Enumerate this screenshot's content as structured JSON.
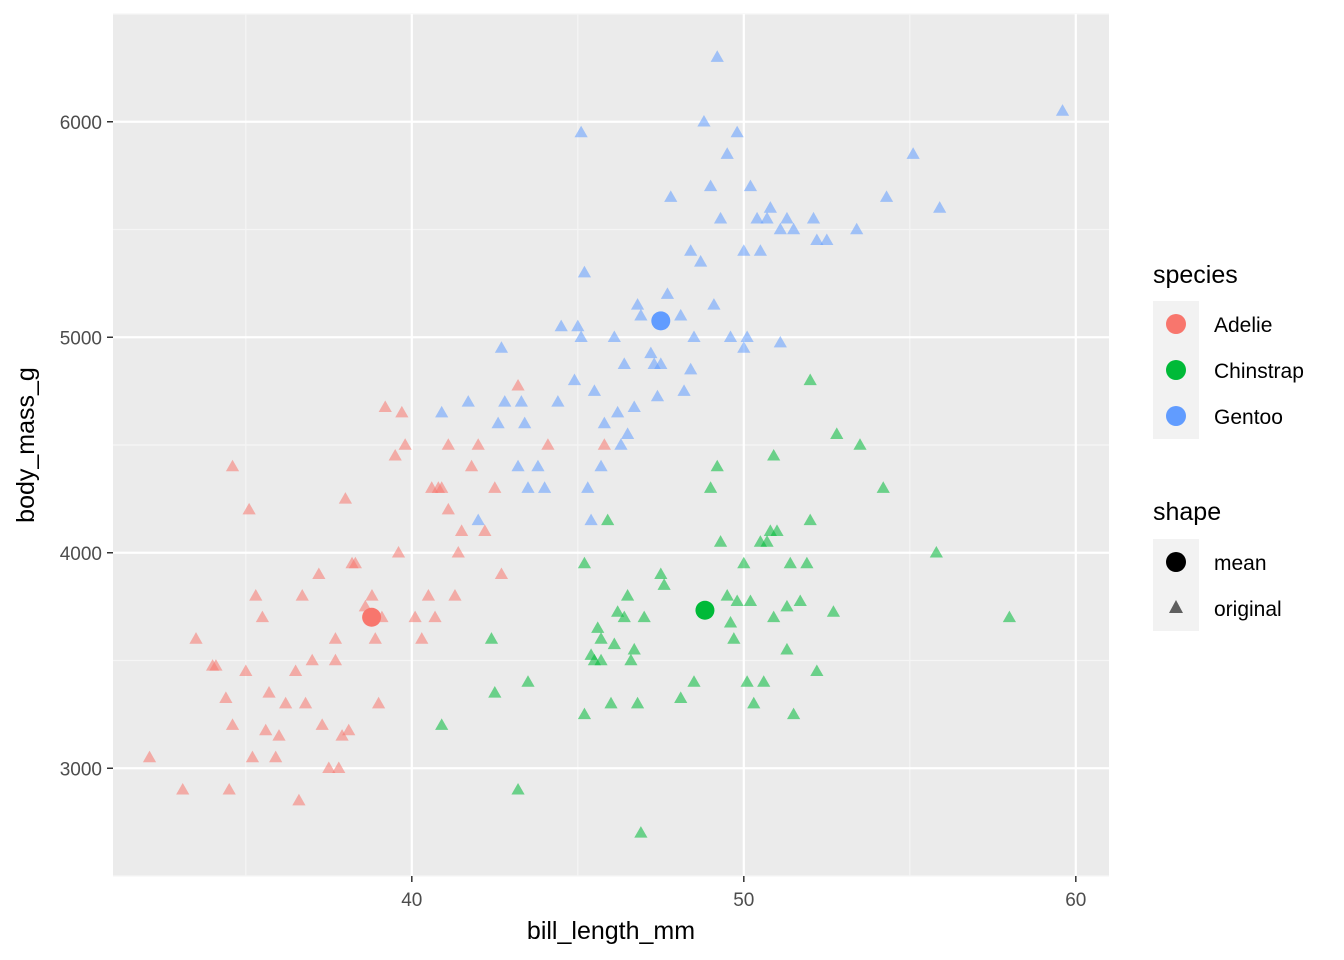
{
  "chart_data": {
    "type": "scatter",
    "title": "",
    "xlabel": "bill_length_mm",
    "ylabel": "body_mass_g",
    "xlim": [
      31,
      61
    ],
    "ylim": [
      2500,
      6500
    ],
    "x_ticks": [
      40,
      50,
      60
    ],
    "y_ticks": [
      3000,
      4000,
      5000,
      6000
    ],
    "grid": true,
    "legend_position": "right",
    "legends": [
      {
        "title": "species",
        "entries": [
          {
            "label": "Adelie",
            "color": "#F8766D"
          },
          {
            "label": "Chinstrap",
            "color": "#00BA38"
          },
          {
            "label": "Gentoo",
            "color": "#619CFF"
          }
        ]
      },
      {
        "title": "shape",
        "entries": [
          {
            "label": "mean",
            "shape": "circle"
          },
          {
            "label": "original",
            "shape": "triangle"
          }
        ]
      }
    ],
    "series": [
      {
        "name": "Adelie",
        "color": "#F8766D",
        "shape": "original",
        "points": [
          [
            32.1,
            3050
          ],
          [
            33.1,
            2900
          ],
          [
            33.5,
            3600
          ],
          [
            34.0,
            3475
          ],
          [
            34.1,
            3475
          ],
          [
            34.4,
            3325
          ],
          [
            34.5,
            2900
          ],
          [
            34.6,
            4400
          ],
          [
            34.6,
            3200
          ],
          [
            35.0,
            3450
          ],
          [
            35.1,
            4200
          ],
          [
            35.2,
            3050
          ],
          [
            35.3,
            3800
          ],
          [
            35.5,
            3700
          ],
          [
            35.6,
            3175
          ],
          [
            35.7,
            3350
          ],
          [
            35.9,
            3050
          ],
          [
            36.0,
            3150
          ],
          [
            36.2,
            3300
          ],
          [
            36.5,
            3450
          ],
          [
            36.6,
            2850
          ],
          [
            36.7,
            3800
          ],
          [
            37.0,
            3500
          ],
          [
            37.2,
            3900
          ],
          [
            37.3,
            3200
          ],
          [
            37.5,
            3000
          ],
          [
            37.7,
            3600
          ],
          [
            37.8,
            3000
          ],
          [
            37.9,
            3150
          ],
          [
            38.0,
            4250
          ],
          [
            38.1,
            3175
          ],
          [
            38.2,
            3950
          ],
          [
            38.6,
            3750
          ],
          [
            38.8,
            3800
          ],
          [
            38.9,
            3600
          ],
          [
            39.0,
            3300
          ],
          [
            39.1,
            3700
          ],
          [
            39.2,
            4675
          ],
          [
            39.5,
            4450
          ],
          [
            39.6,
            4000
          ],
          [
            39.7,
            4650
          ],
          [
            40.1,
            3700
          ],
          [
            40.3,
            3600
          ],
          [
            40.5,
            3800
          ],
          [
            40.6,
            4300
          ],
          [
            40.8,
            4300
          ],
          [
            40.9,
            4300
          ],
          [
            41.1,
            4500
          ],
          [
            41.3,
            3800
          ],
          [
            41.4,
            4000
          ],
          [
            41.5,
            4100
          ],
          [
            41.8,
            4400
          ],
          [
            42.0,
            4500
          ],
          [
            42.2,
            4100
          ],
          [
            42.5,
            4300
          ],
          [
            42.7,
            3900
          ],
          [
            43.2,
            4775
          ],
          [
            44.1,
            4500
          ],
          [
            45.8,
            4500
          ],
          [
            37.7,
            3500
          ],
          [
            36.8,
            3300
          ],
          [
            38.3,
            3950
          ],
          [
            39.8,
            4500
          ],
          [
            40.7,
            3700
          ],
          [
            41.1,
            4200
          ]
        ]
      },
      {
        "name": "Chinstrap",
        "color": "#00BA38",
        "shape": "original",
        "points": [
          [
            40.9,
            3200
          ],
          [
            42.4,
            3600
          ],
          [
            42.5,
            3350
          ],
          [
            43.2,
            2900
          ],
          [
            43.5,
            3400
          ],
          [
            45.2,
            3950
          ],
          [
            45.2,
            3250
          ],
          [
            45.4,
            3525
          ],
          [
            45.5,
            3500
          ],
          [
            45.6,
            3650
          ],
          [
            45.7,
            3600
          ],
          [
            45.9,
            4150
          ],
          [
            46.0,
            3300
          ],
          [
            46.1,
            3575
          ],
          [
            46.2,
            3725
          ],
          [
            46.4,
            3700
          ],
          [
            46.5,
            3800
          ],
          [
            46.6,
            3500
          ],
          [
            46.8,
            3300
          ],
          [
            46.9,
            2700
          ],
          [
            47.0,
            3700
          ],
          [
            47.5,
            3900
          ],
          [
            47.6,
            3850
          ],
          [
            48.1,
            3325
          ],
          [
            48.5,
            3400
          ],
          [
            49.0,
            4300
          ],
          [
            49.2,
            4400
          ],
          [
            49.5,
            3800
          ],
          [
            49.6,
            3675
          ],
          [
            49.7,
            3600
          ],
          [
            49.8,
            3775
          ],
          [
            50.0,
            3950
          ],
          [
            50.1,
            3400
          ],
          [
            50.2,
            3775
          ],
          [
            50.3,
            3300
          ],
          [
            50.5,
            4050
          ],
          [
            50.6,
            3400
          ],
          [
            50.7,
            4050
          ],
          [
            50.8,
            4100
          ],
          [
            50.9,
            3700
          ],
          [
            51.0,
            4100
          ],
          [
            51.3,
            3750
          ],
          [
            51.4,
            3950
          ],
          [
            51.5,
            3250
          ],
          [
            51.7,
            3775
          ],
          [
            52.0,
            4800
          ],
          [
            52.2,
            3450
          ],
          [
            52.7,
            3725
          ],
          [
            52.8,
            4550
          ],
          [
            53.5,
            4500
          ],
          [
            54.2,
            4300
          ],
          [
            55.8,
            4000
          ],
          [
            58.0,
            3700
          ],
          [
            45.7,
            3500
          ],
          [
            46.7,
            3550
          ],
          [
            49.3,
            4050
          ],
          [
            50.9,
            4450
          ],
          [
            51.3,
            3550
          ],
          [
            52.0,
            4150
          ],
          [
            51.9,
            3950
          ]
        ]
      },
      {
        "name": "Gentoo",
        "color": "#619CFF",
        "shape": "original",
        "points": [
          [
            40.9,
            4650
          ],
          [
            41.7,
            4700
          ],
          [
            42.0,
            4150
          ],
          [
            42.6,
            4600
          ],
          [
            42.7,
            4950
          ],
          [
            42.8,
            4700
          ],
          [
            43.2,
            4400
          ],
          [
            43.3,
            4700
          ],
          [
            43.4,
            4600
          ],
          [
            43.5,
            4300
          ],
          [
            43.8,
            4400
          ],
          [
            44.0,
            4300
          ],
          [
            44.4,
            4700
          ],
          [
            44.5,
            5050
          ],
          [
            45.0,
            5050
          ],
          [
            45.1,
            5000
          ],
          [
            45.2,
            5300
          ],
          [
            45.3,
            4300
          ],
          [
            45.4,
            4150
          ],
          [
            45.5,
            4750
          ],
          [
            45.7,
            4400
          ],
          [
            45.8,
            4600
          ],
          [
            46.1,
            5000
          ],
          [
            46.2,
            4650
          ],
          [
            46.4,
            4875
          ],
          [
            46.5,
            4550
          ],
          [
            46.8,
            5150
          ],
          [
            47.2,
            4925
          ],
          [
            47.3,
            4875
          ],
          [
            47.5,
            4875
          ],
          [
            47.7,
            5200
          ],
          [
            48.1,
            5100
          ],
          [
            48.2,
            4750
          ],
          [
            48.4,
            5400
          ],
          [
            48.5,
            5000
          ],
          [
            48.7,
            5350
          ],
          [
            49.0,
            5700
          ],
          [
            49.1,
            5150
          ],
          [
            49.2,
            6300
          ],
          [
            49.5,
            5850
          ],
          [
            49.8,
            5950
          ],
          [
            50.0,
            5400
          ],
          [
            50.1,
            5000
          ],
          [
            50.2,
            5700
          ],
          [
            50.4,
            5550
          ],
          [
            50.5,
            5400
          ],
          [
            50.7,
            5550
          ],
          [
            50.8,
            5600
          ],
          [
            51.1,
            5500
          ],
          [
            51.3,
            5550
          ],
          [
            51.5,
            5500
          ],
          [
            52.1,
            5550
          ],
          [
            52.2,
            5450
          ],
          [
            52.5,
            5450
          ],
          [
            53.4,
            5500
          ],
          [
            54.3,
            5650
          ],
          [
            55.1,
            5850
          ],
          [
            55.9,
            5600
          ],
          [
            59.6,
            6050
          ],
          [
            46.9,
            5100
          ],
          [
            45.1,
            5950
          ],
          [
            48.8,
            6000
          ],
          [
            49.3,
            5550
          ],
          [
            47.8,
            5650
          ],
          [
            46.3,
            4500
          ],
          [
            48.4,
            4850
          ],
          [
            44.9,
            4800
          ],
          [
            50.0,
            4950
          ],
          [
            51.1,
            4975
          ],
          [
            47.4,
            4725
          ],
          [
            49.6,
            5000
          ],
          [
            46.7,
            4675
          ]
        ]
      },
      {
        "name": "Adelie",
        "color": "#F8766D",
        "shape": "mean",
        "points": [
          [
            38.79,
            3700.66
          ]
        ]
      },
      {
        "name": "Chinstrap",
        "color": "#00BA38",
        "shape": "mean",
        "points": [
          [
            48.83,
            3733.09
          ]
        ]
      },
      {
        "name": "Gentoo",
        "color": "#619CFF",
        "shape": "mean",
        "points": [
          [
            47.5,
            5076.02
          ]
        ]
      }
    ]
  }
}
